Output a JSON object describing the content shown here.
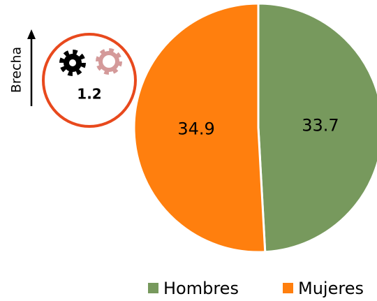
{
  "chart_data": {
    "type": "pie",
    "categories": [
      "Hombres",
      "Mujeres"
    ],
    "values": [
      33.7,
      34.9
    ],
    "colors": [
      "#77995d",
      "#ff7f0e"
    ],
    "annotation": {
      "label": "Brecha",
      "value": 1.2
    }
  }
}
